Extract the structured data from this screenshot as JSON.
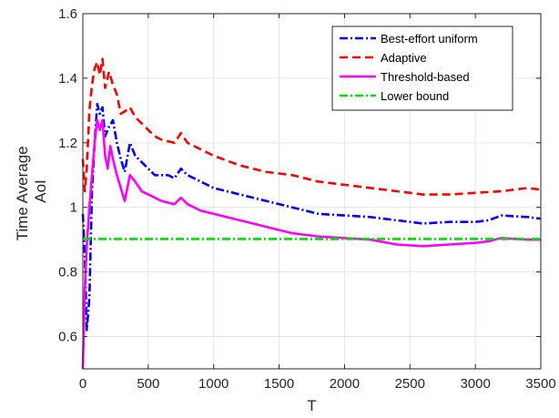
{
  "chart_data": {
    "type": "line",
    "xlabel": "T",
    "ylabel_lines": [
      "Time Average",
      "AoI"
    ],
    "xlim": [
      0,
      3500
    ],
    "ylim": [
      0.5,
      1.6
    ],
    "xticks": [
      0,
      500,
      1000,
      1500,
      2000,
      2500,
      3000,
      3500
    ],
    "xtick_labels": [
      "0",
      "500",
      "1000",
      "1500",
      "2000",
      "2500",
      "3000",
      "3500"
    ],
    "yticks": [
      0.6,
      0.8,
      1.0,
      1.2,
      1.4,
      1.6
    ],
    "ytick_labels": [
      "0.6",
      "0.8",
      "1",
      "1.2",
      "1.4",
      "1.6"
    ],
    "grid": true,
    "legend_position": "top-right",
    "series": [
      {
        "name": "Best-effort uniform",
        "color": "#0000ff",
        "dash": "dash-dot",
        "points": [
          [
            0,
            0.98
          ],
          [
            15,
            0.85
          ],
          [
            30,
            0.62
          ],
          [
            50,
            0.72
          ],
          [
            70,
            1.05
          ],
          [
            90,
            1.2
          ],
          [
            110,
            1.32
          ],
          [
            130,
            1.29
          ],
          [
            150,
            1.31
          ],
          [
            170,
            1.22
          ],
          [
            200,
            1.25
          ],
          [
            230,
            1.27
          ],
          [
            260,
            1.2
          ],
          [
            290,
            1.15
          ],
          [
            320,
            1.11
          ],
          [
            360,
            1.2
          ],
          [
            400,
            1.16
          ],
          [
            450,
            1.14
          ],
          [
            500,
            1.12
          ],
          [
            550,
            1.1
          ],
          [
            600,
            1.1
          ],
          [
            650,
            1.1
          ],
          [
            700,
            1.09
          ],
          [
            750,
            1.12
          ],
          [
            800,
            1.1
          ],
          [
            900,
            1.08
          ],
          [
            1000,
            1.06
          ],
          [
            1200,
            1.04
          ],
          [
            1400,
            1.02
          ],
          [
            1600,
            1.0
          ],
          [
            1800,
            0.98
          ],
          [
            2000,
            0.975
          ],
          [
            2200,
            0.97
          ],
          [
            2400,
            0.96
          ],
          [
            2600,
            0.95
          ],
          [
            2800,
            0.955
          ],
          [
            3000,
            0.955
          ],
          [
            3100,
            0.96
          ],
          [
            3200,
            0.975
          ],
          [
            3400,
            0.97
          ],
          [
            3500,
            0.965
          ]
        ]
      },
      {
        "name": "Adaptive",
        "color": "#ff0000",
        "dash": "dash",
        "points": [
          [
            0,
            1.15
          ],
          [
            15,
            1.05
          ],
          [
            30,
            1.12
          ],
          [
            50,
            1.3
          ],
          [
            70,
            1.38
          ],
          [
            90,
            1.43
          ],
          [
            110,
            1.45
          ],
          [
            130,
            1.41
          ],
          [
            150,
            1.46
          ],
          [
            170,
            1.37
          ],
          [
            200,
            1.42
          ],
          [
            230,
            1.38
          ],
          [
            260,
            1.35
          ],
          [
            290,
            1.29
          ],
          [
            330,
            1.3
          ],
          [
            360,
            1.31
          ],
          [
            400,
            1.28
          ],
          [
            450,
            1.26
          ],
          [
            500,
            1.24
          ],
          [
            550,
            1.22
          ],
          [
            600,
            1.21
          ],
          [
            700,
            1.2
          ],
          [
            750,
            1.23
          ],
          [
            800,
            1.2
          ],
          [
            900,
            1.18
          ],
          [
            1000,
            1.16
          ],
          [
            1200,
            1.13
          ],
          [
            1400,
            1.11
          ],
          [
            1600,
            1.1
          ],
          [
            1800,
            1.08
          ],
          [
            2000,
            1.07
          ],
          [
            2200,
            1.06
          ],
          [
            2400,
            1.05
          ],
          [
            2600,
            1.04
          ],
          [
            2800,
            1.04
          ],
          [
            3000,
            1.045
          ],
          [
            3200,
            1.05
          ],
          [
            3400,
            1.06
          ],
          [
            3500,
            1.055
          ]
        ]
      },
      {
        "name": "Threshold-based",
        "color": "#ff00ff",
        "dash": "solid",
        "points": [
          [
            0,
            0.5
          ],
          [
            15,
            0.75
          ],
          [
            30,
            0.88
          ],
          [
            50,
            1.0
          ],
          [
            70,
            1.1
          ],
          [
            90,
            1.2
          ],
          [
            110,
            1.27
          ],
          [
            130,
            1.24
          ],
          [
            150,
            1.27
          ],
          [
            170,
            1.16
          ],
          [
            190,
            1.12
          ],
          [
            210,
            1.19
          ],
          [
            230,
            1.15
          ],
          [
            260,
            1.1
          ],
          [
            290,
            1.06
          ],
          [
            320,
            1.02
          ],
          [
            360,
            1.1
          ],
          [
            400,
            1.08
          ],
          [
            450,
            1.05
          ],
          [
            500,
            1.04
          ],
          [
            550,
            1.03
          ],
          [
            600,
            1.02
          ],
          [
            700,
            1.01
          ],
          [
            750,
            1.03
          ],
          [
            800,
            1.01
          ],
          [
            900,
            0.99
          ],
          [
            1000,
            0.98
          ],
          [
            1200,
            0.96
          ],
          [
            1400,
            0.94
          ],
          [
            1600,
            0.92
          ],
          [
            1800,
            0.91
          ],
          [
            2000,
            0.905
          ],
          [
            2200,
            0.9
          ],
          [
            2400,
            0.885
          ],
          [
            2600,
            0.88
          ],
          [
            2800,
            0.885
          ],
          [
            3000,
            0.89
          ],
          [
            3100,
            0.895
          ],
          [
            3200,
            0.905
          ],
          [
            3400,
            0.9
          ],
          [
            3500,
            0.9
          ]
        ]
      },
      {
        "name": "Lower bound",
        "color": "#00dd00",
        "dash": "dash-dot",
        "points": [
          [
            0,
            0.902
          ],
          [
            3500,
            0.902
          ]
        ]
      }
    ]
  }
}
